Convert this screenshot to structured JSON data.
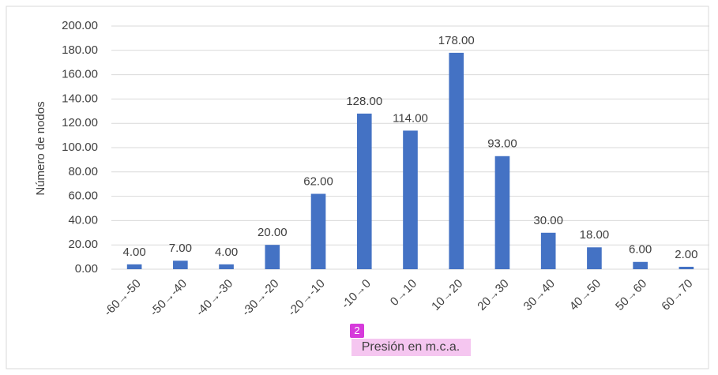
{
  "chart_data": {
    "type": "bar",
    "x_label": "Presión en m.c.a.",
    "y_label": "Número de nodos",
    "annotation": "2",
    "categories": [
      "-60→-50",
      "-50→-40",
      "-40→-30",
      "-30→-20",
      "-20→-10",
      "-10→0",
      "0→10",
      "10→20",
      "20→30",
      "30→40",
      "40→50",
      "50→60",
      "60→70"
    ],
    "values": [
      4,
      7,
      4,
      20,
      62,
      128,
      114,
      178,
      93,
      30,
      18,
      6,
      2
    ],
    "value_labels": [
      "4.00",
      "7.00",
      "4.00",
      "20.00",
      "62.00",
      "128.00",
      "114.00",
      "178.00",
      "93.00",
      "30.00",
      "18.00",
      "6.00",
      "2.00"
    ],
    "color": "#4472c4",
    "ylim": [
      0,
      200
    ],
    "yticks": [
      {
        "value": 0,
        "label": "0.00"
      },
      {
        "value": 20,
        "label": "20.00"
      },
      {
        "value": 40,
        "label": "40.00"
      },
      {
        "value": 60,
        "label": "60.00"
      },
      {
        "value": 80,
        "label": "80.00"
      },
      {
        "value": 100,
        "label": "100.00"
      },
      {
        "value": 120,
        "label": "120.00"
      },
      {
        "value": 140,
        "label": "140.00"
      },
      {
        "value": 160,
        "label": "160.00"
      },
      {
        "value": 180,
        "label": "180.00"
      },
      {
        "value": 200,
        "label": "200.00"
      }
    ],
    "grid": true
  }
}
